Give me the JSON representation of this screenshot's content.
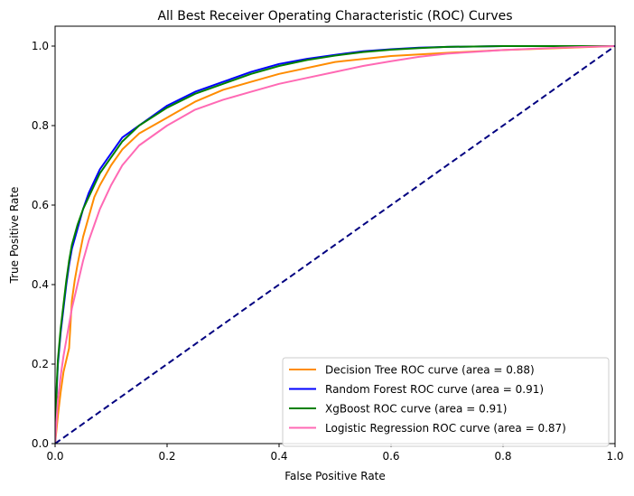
{
  "chart_data": {
    "type": "line",
    "title": "All Best Receiver Operating Characteristic (ROC) Curves",
    "xlabel": "False Positive Rate",
    "ylabel": "True Positive Rate",
    "xlim": [
      0.0,
      1.0
    ],
    "ylim": [
      0.0,
      1.05
    ],
    "xticks": [
      0.0,
      0.2,
      0.4,
      0.6,
      0.8,
      1.0
    ],
    "yticks": [
      0.0,
      0.2,
      0.4,
      0.6,
      0.8,
      1.0
    ],
    "xtick_labels": [
      "0.0",
      "0.2",
      "0.4",
      "0.6",
      "0.8",
      "1.0"
    ],
    "ytick_labels": [
      "0.0",
      "0.2",
      "0.4",
      "0.6",
      "0.8",
      "1.0"
    ],
    "grid": false,
    "legend_position": "lower-right",
    "series": [
      {
        "name": "Decision Tree ROC curve (area = 0.88)",
        "color": "#ff8c00",
        "dashed": false,
        "x": [
          0.0,
          0.005,
          0.01,
          0.015,
          0.02,
          0.025,
          0.03,
          0.035,
          0.04,
          0.05,
          0.06,
          0.07,
          0.08,
          0.1,
          0.12,
          0.15,
          0.2,
          0.25,
          0.3,
          0.35,
          0.4,
          0.5,
          0.6,
          0.7,
          0.8,
          0.9,
          1.0
        ],
        "y": [
          0.0,
          0.07,
          0.13,
          0.18,
          0.21,
          0.24,
          0.36,
          0.41,
          0.45,
          0.52,
          0.57,
          0.62,
          0.65,
          0.7,
          0.74,
          0.78,
          0.82,
          0.86,
          0.89,
          0.91,
          0.93,
          0.96,
          0.975,
          0.983,
          0.99,
          0.995,
          1.0
        ]
      },
      {
        "name": "Random Forest ROC curve (area = 0.91)",
        "color": "#0000ff",
        "dashed": false,
        "x": [
          0.0,
          0.003,
          0.005,
          0.01,
          0.015,
          0.02,
          0.025,
          0.03,
          0.04,
          0.05,
          0.06,
          0.07,
          0.08,
          0.1,
          0.12,
          0.15,
          0.2,
          0.25,
          0.3,
          0.35,
          0.4,
          0.45,
          0.5,
          0.55,
          0.6,
          0.65,
          0.7,
          0.8,
          0.9,
          1.0
        ],
        "y": [
          0.0,
          0.14,
          0.2,
          0.28,
          0.34,
          0.4,
          0.45,
          0.49,
          0.54,
          0.59,
          0.63,
          0.66,
          0.69,
          0.73,
          0.77,
          0.8,
          0.85,
          0.885,
          0.91,
          0.935,
          0.955,
          0.968,
          0.978,
          0.987,
          0.992,
          0.996,
          0.998,
          1.0,
          1.0,
          1.0
        ]
      },
      {
        "name": "XgBoost ROC curve (area = 0.91)",
        "color": "#008000",
        "dashed": false,
        "x": [
          0.0,
          0.003,
          0.005,
          0.01,
          0.015,
          0.02,
          0.025,
          0.03,
          0.04,
          0.05,
          0.06,
          0.07,
          0.08,
          0.1,
          0.12,
          0.15,
          0.2,
          0.25,
          0.3,
          0.35,
          0.4,
          0.45,
          0.5,
          0.55,
          0.6,
          0.65,
          0.7,
          0.8,
          0.9,
          1.0
        ],
        "y": [
          0.0,
          0.15,
          0.21,
          0.29,
          0.35,
          0.41,
          0.46,
          0.5,
          0.55,
          0.59,
          0.62,
          0.65,
          0.68,
          0.72,
          0.76,
          0.8,
          0.845,
          0.88,
          0.905,
          0.93,
          0.95,
          0.965,
          0.976,
          0.985,
          0.991,
          0.995,
          0.998,
          1.0,
          1.0,
          1.0
        ]
      },
      {
        "name": "Logistic Regression ROC curve (area = 0.87)",
        "color": "#ff69b4",
        "dashed": false,
        "x": [
          0.0,
          0.005,
          0.01,
          0.015,
          0.02,
          0.025,
          0.03,
          0.04,
          0.05,
          0.06,
          0.07,
          0.08,
          0.09,
          0.1,
          0.12,
          0.15,
          0.2,
          0.25,
          0.3,
          0.35,
          0.4,
          0.45,
          0.5,
          0.55,
          0.6,
          0.65,
          0.7,
          0.8,
          0.9,
          1.0
        ],
        "y": [
          0.0,
          0.11,
          0.17,
          0.22,
          0.26,
          0.3,
          0.34,
          0.4,
          0.46,
          0.51,
          0.55,
          0.59,
          0.62,
          0.65,
          0.7,
          0.75,
          0.8,
          0.84,
          0.865,
          0.885,
          0.905,
          0.92,
          0.935,
          0.95,
          0.962,
          0.973,
          0.981,
          0.99,
          0.996,
          1.0
        ]
      },
      {
        "name": "",
        "color": "#000080",
        "dashed": true,
        "x": [
          0.0,
          1.0
        ],
        "y": [
          0.0,
          1.0
        ]
      }
    ]
  }
}
